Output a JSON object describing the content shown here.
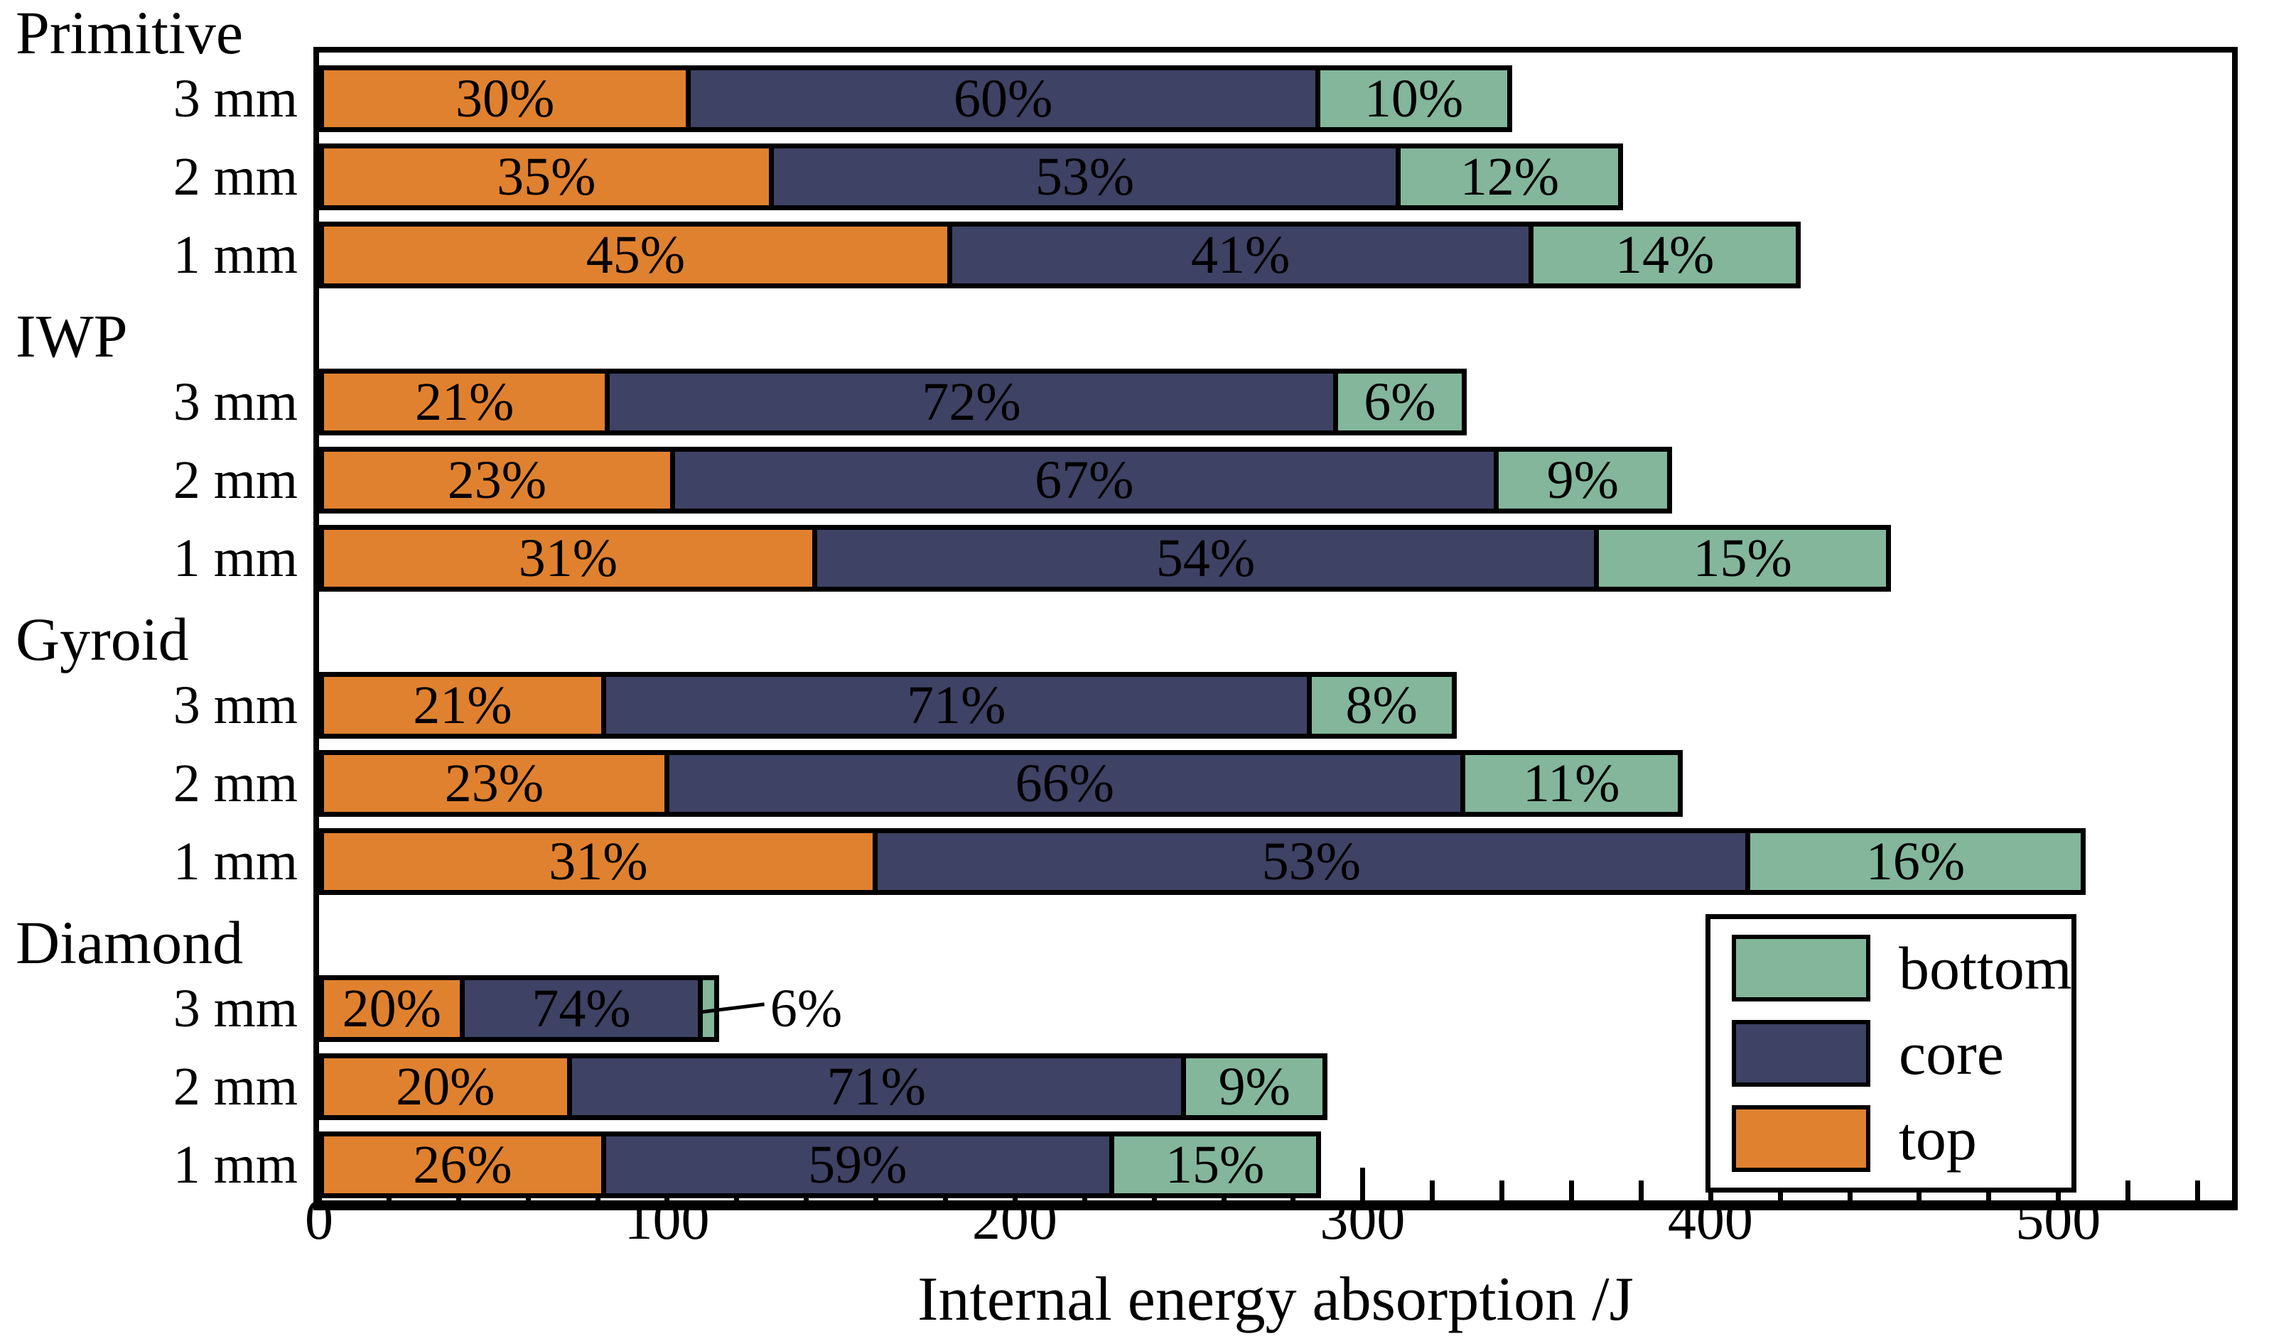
{
  "chart_data": {
    "type": "bar",
    "orientation": "horizontal",
    "stacked": true,
    "title": "",
    "xlabel": "Internal energy absorption /J",
    "ylabel": "",
    "xlim": [
      0,
      550
    ],
    "x_ticks": [
      {
        "value": 0,
        "label": "0"
      },
      {
        "value": 100,
        "label": "100"
      },
      {
        "value": 200,
        "label": "200"
      },
      {
        "value": 300,
        "label": "300"
      },
      {
        "value": 400,
        "label": "400"
      },
      {
        "value": 500,
        "label": "500"
      }
    ],
    "minor_tick_step": 20,
    "minor_tick_max": 540,
    "grid": false,
    "colors": {
      "top": "#E0812F",
      "core": "#3E4264",
      "bottom": "#83B69B",
      "edge": "#000000"
    },
    "legend": {
      "position": "lower right",
      "entries": [
        {
          "name": "bottom",
          "label": "bottom",
          "color": "#83B69B"
        },
        {
          "name": "core",
          "label": "core",
          "color": "#3E4264"
        },
        {
          "name": "top",
          "label": "top",
          "color": "#E0812F"
        }
      ]
    },
    "groups": [
      {
        "name": "Primitive",
        "rows": [
          {
            "label": "3 mm",
            "total_J": 343,
            "segments": [
              {
                "name": "top",
                "pct": 30,
                "value_J": 103,
                "label": "30%"
              },
              {
                "name": "core",
                "pct": 60,
                "value_J": 206,
                "label": "60%"
              },
              {
                "name": "bottom",
                "pct": 10,
                "value_J": 34,
                "label": "10%"
              }
            ]
          },
          {
            "label": "2 mm",
            "total_J": 375,
            "segments": [
              {
                "name": "top",
                "pct": 35,
                "value_J": 131,
                "label": "35%"
              },
              {
                "name": "core",
                "pct": 53,
                "value_J": 199,
                "label": "53%"
              },
              {
                "name": "bottom",
                "pct": 12,
                "value_J": 45,
                "label": "12%"
              }
            ]
          },
          {
            "label": "1 mm",
            "total_J": 426,
            "segments": [
              {
                "name": "top",
                "pct": 45,
                "value_J": 192,
                "label": "45%"
              },
              {
                "name": "core",
                "pct": 41,
                "value_J": 175,
                "label": "41%"
              },
              {
                "name": "bottom",
                "pct": 14,
                "value_J": 60,
                "label": "14%"
              }
            ]
          }
        ]
      },
      {
        "name": "IWP",
        "rows": [
          {
            "label": "3 mm",
            "total_J": 330,
            "segments": [
              {
                "name": "top",
                "pct": 21,
                "value_J": 69,
                "label": "21%"
              },
              {
                "name": "core",
                "pct": 72,
                "value_J": 238,
                "label": "72%"
              },
              {
                "name": "bottom",
                "pct": 6,
                "value_J": 20,
                "label": "6%"
              }
            ]
          },
          {
            "label": "2 mm",
            "total_J": 389,
            "segments": [
              {
                "name": "top",
                "pct": 23,
                "value_J": 89,
                "label": "23%"
              },
              {
                "name": "core",
                "pct": 67,
                "value_J": 261,
                "label": "67%"
              },
              {
                "name": "bottom",
                "pct": 9,
                "value_J": 35,
                "label": "9%"
              }
            ]
          },
          {
            "label": "1 mm",
            "total_J": 452,
            "segments": [
              {
                "name": "top",
                "pct": 31,
                "value_J": 140,
                "label": "31%"
              },
              {
                "name": "core",
                "pct": 54,
                "value_J": 244,
                "label": "54%"
              },
              {
                "name": "bottom",
                "pct": 15,
                "value_J": 68,
                "label": "15%"
              }
            ]
          }
        ]
      },
      {
        "name": "Gyroid",
        "rows": [
          {
            "label": "3 mm",
            "total_J": 327,
            "segments": [
              {
                "name": "top",
                "pct": 21,
                "value_J": 69,
                "label": "21%"
              },
              {
                "name": "core",
                "pct": 71,
                "value_J": 232,
                "label": "71%"
              },
              {
                "name": "bottom",
                "pct": 8,
                "value_J": 26,
                "label": "8%"
              }
            ]
          },
          {
            "label": "2 mm",
            "total_J": 392,
            "segments": [
              {
                "name": "top",
                "pct": 23,
                "value_J": 90,
                "label": "23%"
              },
              {
                "name": "core",
                "pct": 66,
                "value_J": 259,
                "label": "66%"
              },
              {
                "name": "bottom",
                "pct": 11,
                "value_J": 43,
                "label": "11%"
              }
            ]
          },
          {
            "label": "1 mm",
            "total_J": 508,
            "segments": [
              {
                "name": "top",
                "pct": 31,
                "value_J": 157,
                "label": "31%"
              },
              {
                "name": "core",
                "pct": 53,
                "value_J": 269,
                "label": "53%"
              },
              {
                "name": "bottom",
                "pct": 16,
                "value_J": 81,
                "label": "16%"
              }
            ]
          }
        ]
      },
      {
        "name": "Diamond",
        "rows": [
          {
            "label": "3 mm",
            "total_J": 115,
            "segments": [
              {
                "name": "top",
                "pct": 20,
                "value_J": 23,
                "label": "20%"
              },
              {
                "name": "core",
                "pct": 74,
                "value_J": 85,
                "label": "74%"
              },
              {
                "name": "bottom",
                "pct": 6,
                "value_J": 7,
                "label": "6%",
                "label_outside": true
              }
            ]
          },
          {
            "label": "2 mm",
            "total_J": 290,
            "segments": [
              {
                "name": "top",
                "pct": 20,
                "value_J": 58,
                "label": "20%"
              },
              {
                "name": "core",
                "pct": 71,
                "value_J": 206,
                "label": "71%"
              },
              {
                "name": "bottom",
                "pct": 9,
                "value_J": 26,
                "label": "9%"
              }
            ]
          },
          {
            "label": "1 mm",
            "total_J": 288,
            "segments": [
              {
                "name": "top",
                "pct": 26,
                "value_J": 75,
                "label": "26%"
              },
              {
                "name": "core",
                "pct": 59,
                "value_J": 170,
                "label": "59%"
              },
              {
                "name": "bottom",
                "pct": 15,
                "value_J": 43,
                "label": "15%"
              }
            ]
          }
        ]
      }
    ]
  }
}
